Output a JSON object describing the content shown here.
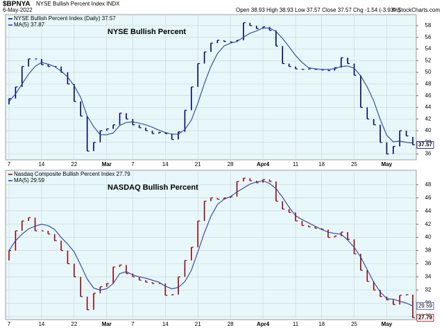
{
  "header": {
    "symbol": "$BPNYA",
    "name": "NYSE Bullish Percent Index INDX",
    "date": "6-May-2022",
    "quote": "Open 38.93 High 38.93 Low 37.57 Close 37.57 Chg -1.54 (-3.93%)",
    "source": "© StockCharts.com"
  },
  "chart_data": [
    {
      "type": "ohlc",
      "title": "NYSE Bullish Percent",
      "title_color": "#1a1acc",
      "categories": [
        "7",
        null,
        null,
        null,
        null,
        "14",
        null,
        null,
        null,
        null,
        "22",
        null,
        null,
        null,
        null,
        "Mar",
        null,
        null,
        null,
        "7",
        null,
        null,
        null,
        null,
        "14",
        null,
        null,
        null,
        null,
        "21",
        null,
        null,
        null,
        null,
        "28",
        null,
        null,
        null,
        null,
        "Apr4",
        null,
        null,
        null,
        null,
        "11",
        null,
        null,
        null,
        "18",
        null,
        null,
        null,
        null,
        "25",
        null,
        null,
        null,
        null,
        "May",
        null,
        null,
        null,
        null
      ],
      "series": [
        {
          "name": "NYSE Bullish Percent Index (Daily) 37.57",
          "style": "bar",
          "color": "#000066",
          "open": [
            44.5,
            45.5,
            47.5,
            51,
            52.3,
            52.3,
            51.3,
            51,
            51,
            50,
            48,
            45,
            42.5,
            36.5,
            38,
            40,
            40.3,
            41,
            43,
            42,
            41,
            40.5,
            40,
            39.5,
            39.7,
            39.5,
            38.5,
            39.8,
            43.5,
            47.5,
            51.5,
            53.5,
            55,
            55.5,
            55.3,
            55.2,
            55.5,
            58.5,
            58,
            57.5,
            57.8,
            57.2,
            54.5,
            51.5,
            51,
            50.6,
            50.5,
            50.6,
            50.5,
            50.4,
            50.3,
            50.8,
            52.5,
            51.5,
            49.5,
            44,
            42,
            41,
            38,
            36,
            37.3,
            40,
            38.93
          ],
          "values": [
            45.5,
            47.5,
            51,
            52.3,
            52.3,
            51.3,
            51,
            51,
            50,
            48,
            45,
            42.5,
            36.5,
            38,
            40,
            40.3,
            41,
            43,
            42,
            41,
            40.5,
            40,
            39.5,
            39.7,
            39.5,
            38.5,
            39.8,
            43.5,
            47.5,
            51.5,
            53.5,
            55,
            55.5,
            55.3,
            55.2,
            55.5,
            58.5,
            58,
            57.5,
            57.8,
            57.2,
            54.5,
            51.5,
            51,
            50.6,
            50.5,
            50.6,
            50.5,
            50.4,
            50.3,
            50.8,
            52.5,
            51.5,
            49.5,
            44,
            42,
            41,
            38,
            36,
            37.3,
            40,
            39.1,
            37.57
          ]
        },
        {
          "name": "MA(5) 37.87",
          "style": "line",
          "color": "#2a3f9e",
          "values": [
            45,
            46.3,
            48,
            49.7,
            51,
            51.7,
            51.4,
            51,
            50.2,
            49.2,
            47.7,
            45.7,
            42.5,
            40.7,
            39.3,
            39.3,
            39.6,
            40.9,
            41.4,
            41.5,
            41.3,
            41,
            40.6,
            40.1,
            39.7,
            39.4,
            39.4,
            40.2,
            41.8,
            44.7,
            48.1,
            51,
            53.2,
            54.5,
            55,
            55.3,
            56,
            56.7,
            57.1,
            57.6,
            57.6,
            57,
            55.8,
            54.4,
            52.9,
            51.7,
            50.8,
            50.6,
            50.5,
            50.5,
            50.6,
            51,
            51.1,
            50.7,
            49.4,
            47.5,
            45.1,
            41.9,
            39.2,
            38.1,
            38.2,
            38,
            37.87
          ]
        }
      ],
      "ylim": [
        35,
        59.9
      ],
      "yticks": [
        36,
        38,
        40,
        42,
        44,
        46,
        48,
        50,
        52,
        54,
        56,
        58
      ],
      "grid": true
    },
    {
      "type": "ohlc",
      "title": "NASDAQ Bullish Percent",
      "title_color": "#dd1111",
      "categories": [
        "7",
        null,
        null,
        null,
        null,
        "14",
        null,
        null,
        null,
        null,
        "22",
        null,
        null,
        null,
        null,
        "Mar",
        null,
        null,
        null,
        "7",
        null,
        null,
        null,
        null,
        "14",
        null,
        null,
        null,
        null,
        "21",
        null,
        null,
        null,
        null,
        "28",
        null,
        null,
        null,
        null,
        "Apr4",
        null,
        null,
        null,
        null,
        "11",
        null,
        null,
        null,
        "18",
        null,
        null,
        null,
        null,
        "25",
        null,
        null,
        null,
        null,
        "May",
        null,
        null,
        null,
        null
      ],
      "series": [
        {
          "name": "Nasdaq Composite Bullish Percent Index 27.79",
          "style": "bar",
          "color": "#990000",
          "open": [
            36.5,
            38,
            41,
            42.5,
            43,
            41,
            41,
            40.5,
            39.5,
            38,
            36,
            34,
            31,
            29,
            31.5,
            32.5,
            33,
            35.5,
            35.8,
            34.5,
            34,
            33.5,
            33.2,
            33,
            33,
            31.2,
            31.3,
            34,
            36.5,
            38.5,
            42.5,
            45.5,
            46,
            45.8,
            46,
            46.2,
            48.5,
            49,
            48.6,
            48.3,
            48.8,
            48.5,
            45.5,
            44.3,
            43.8,
            42.5,
            41.8,
            41.6,
            41.4,
            41.2,
            40,
            40.2,
            40.8,
            39.7,
            37.5,
            35,
            33.3,
            32,
            31,
            30.5,
            29.8,
            31.2,
            31.3
          ],
          "values": [
            38,
            41,
            42.5,
            43,
            41,
            41,
            40.5,
            39.5,
            38,
            36,
            34,
            31,
            29,
            31.5,
            32.5,
            33,
            35.5,
            35.8,
            34.5,
            34,
            33.5,
            33.2,
            33,
            33,
            31.2,
            31.3,
            34,
            36.5,
            38.5,
            42.5,
            45.5,
            46,
            45.8,
            46,
            46.2,
            48.5,
            49,
            48.6,
            48.3,
            48.8,
            48.5,
            45.5,
            44.3,
            43.8,
            42.5,
            41.8,
            41.6,
            41.4,
            41.2,
            40,
            40.2,
            40.8,
            39.7,
            37.5,
            35,
            33.3,
            32,
            31,
            30.5,
            29.8,
            31.2,
            31.3,
            27.79
          ]
        },
        {
          "name": "MA(5) 29.59",
          "style": "line",
          "color": "#2a3f9e",
          "values": [
            38,
            39.5,
            40.5,
            41.3,
            41.7,
            42,
            41.8,
            41.2,
            40,
            39,
            37.8,
            35.8,
            33.7,
            32.3,
            32,
            32.2,
            33,
            34.5,
            34.8,
            34.3,
            34,
            33.8,
            33.5,
            33.2,
            32.6,
            32.2,
            32.4,
            33.3,
            35,
            37.8,
            40.7,
            43.2,
            45,
            45.8,
            46.2,
            46.9,
            47.5,
            48.1,
            48.4,
            48.6,
            48.2,
            47.4,
            46.1,
            44.6,
            43.3,
            42.7,
            42.2,
            41.7,
            41.2,
            40.8,
            40.6,
            40.5,
            39.6,
            38.5,
            37,
            35.1,
            33.2,
            31.7,
            30.7,
            30.6,
            30.3,
            30,
            29.59
          ]
        }
      ],
      "ylim": [
        27.5,
        50.2
      ],
      "yticks": [
        28,
        30,
        32,
        34,
        36,
        38,
        40,
        42,
        44,
        46,
        48
      ],
      "grid": true
    }
  ]
}
